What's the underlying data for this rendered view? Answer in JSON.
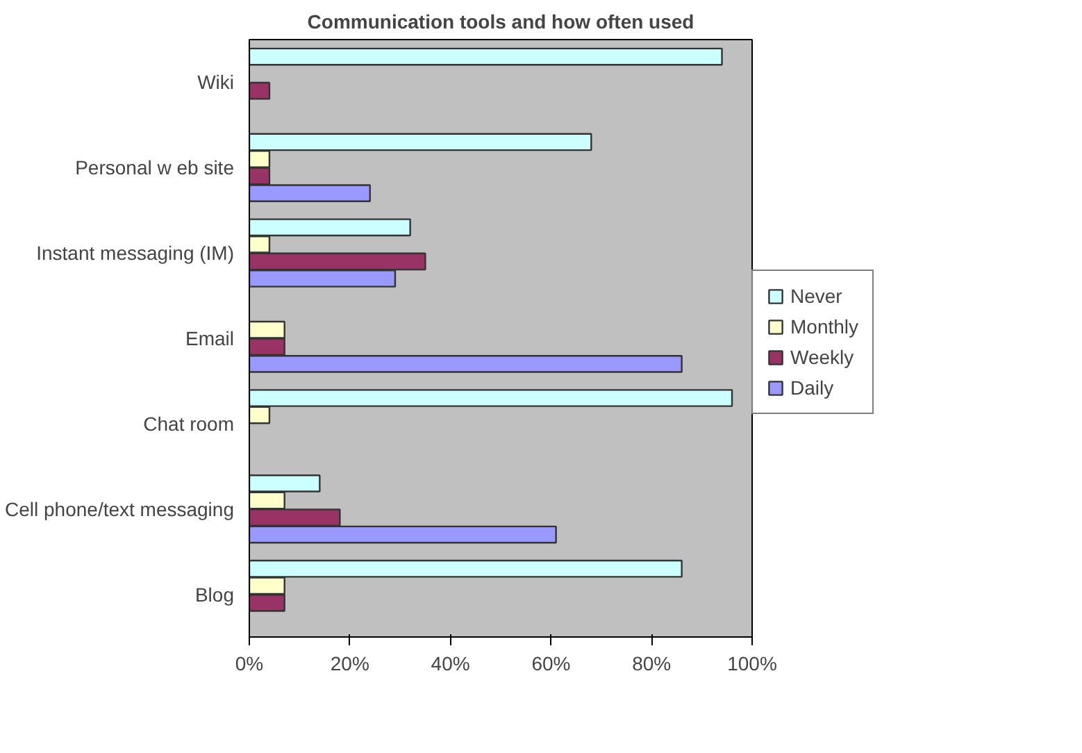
{
  "chart_data": {
    "type": "bar",
    "orientation": "horizontal",
    "title": "Communication tools and how often used",
    "categories": [
      "Wiki",
      "Personal w eb site",
      "Instant messaging (IM)",
      "Email",
      "Chat room",
      "Cell phone/text messaging",
      "Blog"
    ],
    "series": [
      {
        "name": "Never",
        "color": "#ccffff",
        "values": [
          94,
          68,
          32,
          null,
          96,
          14,
          86
        ]
      },
      {
        "name": "Monthly",
        "color": "#ffffcc",
        "values": [
          null,
          4,
          4,
          7,
          4,
          7,
          7
        ]
      },
      {
        "name": "Weekly",
        "color": "#993366",
        "values": [
          4,
          4,
          35,
          7,
          null,
          18,
          7
        ]
      },
      {
        "name": "Daily",
        "color": "#9999ff",
        "values": [
          null,
          24,
          29,
          86,
          null,
          61,
          null
        ]
      }
    ],
    "xlim": [
      0,
      100
    ],
    "xticks": [
      {
        "value": 0,
        "label": "0%"
      },
      {
        "value": 20,
        "label": "20%"
      },
      {
        "value": 40,
        "label": "40%"
      },
      {
        "value": 60,
        "label": "60%"
      },
      {
        "value": 80,
        "label": "80%"
      },
      {
        "value": 100,
        "label": "100%"
      }
    ],
    "grid": false,
    "legend": "right"
  }
}
